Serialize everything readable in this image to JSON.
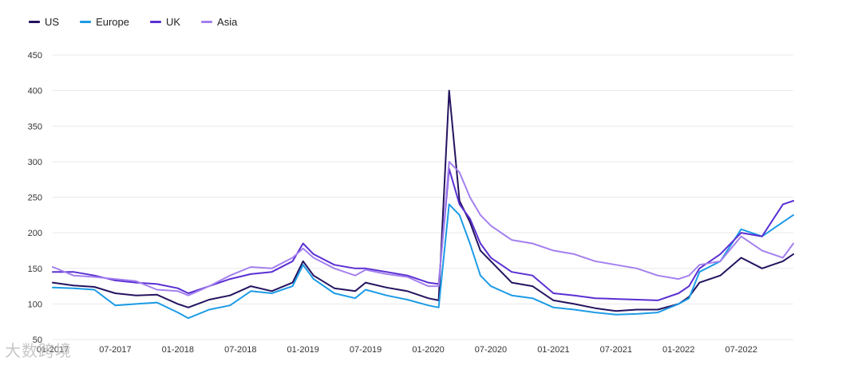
{
  "chart_data": {
    "type": "line",
    "title": "",
    "xlabel": "",
    "ylabel": "",
    "ylim": [
      50,
      450
    ],
    "yticks": [
      50,
      100,
      150,
      200,
      250,
      300,
      350,
      400,
      450
    ],
    "xlim": [
      "2017-01",
      "2022-12"
    ],
    "xticks": [
      "01-2017",
      "07-2017",
      "01-2018",
      "07-2018",
      "01-2019",
      "07-2019",
      "01-2020",
      "07-2020",
      "01-2021",
      "07-2021",
      "01-2022",
      "07-2022"
    ],
    "grid": "horizontal",
    "legend_position": "top-left",
    "series": [
      {
        "name": "US",
        "color": "#24135f",
        "points": [
          [
            "2017-01",
            130
          ],
          [
            "2017-03",
            126
          ],
          [
            "2017-05",
            124
          ],
          [
            "2017-07",
            115
          ],
          [
            "2017-09",
            112
          ],
          [
            "2017-11",
            113
          ],
          [
            "2018-01",
            100
          ],
          [
            "2018-02",
            95
          ],
          [
            "2018-04",
            106
          ],
          [
            "2018-06",
            112
          ],
          [
            "2018-08",
            125
          ],
          [
            "2018-10",
            118
          ],
          [
            "2018-12",
            130
          ],
          [
            "2019-01",
            160
          ],
          [
            "2019-02",
            140
          ],
          [
            "2019-04",
            122
          ],
          [
            "2019-06",
            118
          ],
          [
            "2019-07",
            130
          ],
          [
            "2019-09",
            123
          ],
          [
            "2019-11",
            118
          ],
          [
            "2020-01",
            108
          ],
          [
            "2020-02",
            105
          ],
          [
            "2020-03",
            400
          ],
          [
            "2020-04",
            245
          ],
          [
            "2020-05",
            215
          ],
          [
            "2020-06",
            175
          ],
          [
            "2020-07",
            160
          ],
          [
            "2020-09",
            130
          ],
          [
            "2020-11",
            125
          ],
          [
            "2021-01",
            105
          ],
          [
            "2021-03",
            100
          ],
          [
            "2021-05",
            94
          ],
          [
            "2021-07",
            90
          ],
          [
            "2021-09",
            92
          ],
          [
            "2021-11",
            92
          ],
          [
            "2022-01",
            100
          ],
          [
            "2022-02",
            110
          ],
          [
            "2022-03",
            130
          ],
          [
            "2022-05",
            140
          ],
          [
            "2022-07",
            165
          ],
          [
            "2022-09",
            150
          ],
          [
            "2022-11",
            160
          ],
          [
            "2022-12",
            170
          ]
        ]
      },
      {
        "name": "Europe",
        "color": "#1c9be6",
        "points": [
          [
            "2017-01",
            123
          ],
          [
            "2017-03",
            122
          ],
          [
            "2017-05",
            120
          ],
          [
            "2017-07",
            98
          ],
          [
            "2017-09",
            100
          ],
          [
            "2017-11",
            102
          ],
          [
            "2018-01",
            88
          ],
          [
            "2018-02",
            80
          ],
          [
            "2018-04",
            92
          ],
          [
            "2018-06",
            98
          ],
          [
            "2018-08",
            118
          ],
          [
            "2018-10",
            115
          ],
          [
            "2018-12",
            125
          ],
          [
            "2019-01",
            155
          ],
          [
            "2019-02",
            135
          ],
          [
            "2019-04",
            115
          ],
          [
            "2019-06",
            108
          ],
          [
            "2019-07",
            120
          ],
          [
            "2019-09",
            112
          ],
          [
            "2019-11",
            106
          ],
          [
            "2020-01",
            98
          ],
          [
            "2020-02",
            95
          ],
          [
            "2020-03",
            240
          ],
          [
            "2020-04",
            225
          ],
          [
            "2020-05",
            185
          ],
          [
            "2020-06",
            140
          ],
          [
            "2020-07",
            125
          ],
          [
            "2020-09",
            112
          ],
          [
            "2020-11",
            108
          ],
          [
            "2021-01",
            95
          ],
          [
            "2021-03",
            92
          ],
          [
            "2021-05",
            88
          ],
          [
            "2021-07",
            85
          ],
          [
            "2021-09",
            86
          ],
          [
            "2021-11",
            88
          ],
          [
            "2022-01",
            100
          ],
          [
            "2022-02",
            108
          ],
          [
            "2022-03",
            145
          ],
          [
            "2022-05",
            160
          ],
          [
            "2022-07",
            205
          ],
          [
            "2022-09",
            195
          ],
          [
            "2022-11",
            215
          ],
          [
            "2022-12",
            225
          ]
        ]
      },
      {
        "name": "UK",
        "color": "#5a2fd2",
        "points": [
          [
            "2017-01",
            145
          ],
          [
            "2017-03",
            145
          ],
          [
            "2017-05",
            140
          ],
          [
            "2017-07",
            133
          ],
          [
            "2017-09",
            130
          ],
          [
            "2017-11",
            128
          ],
          [
            "2018-01",
            122
          ],
          [
            "2018-02",
            115
          ],
          [
            "2018-04",
            125
          ],
          [
            "2018-06",
            135
          ],
          [
            "2018-08",
            142
          ],
          [
            "2018-10",
            145
          ],
          [
            "2018-12",
            160
          ],
          [
            "2019-01",
            185
          ],
          [
            "2019-02",
            170
          ],
          [
            "2019-04",
            155
          ],
          [
            "2019-06",
            150
          ],
          [
            "2019-07",
            150
          ],
          [
            "2019-09",
            145
          ],
          [
            "2019-11",
            140
          ],
          [
            "2020-01",
            130
          ],
          [
            "2020-02",
            128
          ],
          [
            "2020-03",
            290
          ],
          [
            "2020-04",
            240
          ],
          [
            "2020-05",
            220
          ],
          [
            "2020-06",
            185
          ],
          [
            "2020-07",
            165
          ],
          [
            "2020-09",
            145
          ],
          [
            "2020-11",
            140
          ],
          [
            "2021-01",
            115
          ],
          [
            "2021-03",
            112
          ],
          [
            "2021-05",
            108
          ],
          [
            "2021-07",
            107
          ],
          [
            "2021-09",
            106
          ],
          [
            "2021-11",
            105
          ],
          [
            "2022-01",
            115
          ],
          [
            "2022-02",
            125
          ],
          [
            "2022-03",
            150
          ],
          [
            "2022-05",
            170
          ],
          [
            "2022-07",
            200
          ],
          [
            "2022-09",
            195
          ],
          [
            "2022-11",
            240
          ],
          [
            "2022-12",
            245
          ]
        ]
      },
      {
        "name": "Asia",
        "color": "#a480ee",
        "points": [
          [
            "2017-01",
            152
          ],
          [
            "2017-03",
            140
          ],
          [
            "2017-05",
            138
          ],
          [
            "2017-07",
            135
          ],
          [
            "2017-09",
            132
          ],
          [
            "2017-11",
            120
          ],
          [
            "2018-01",
            118
          ],
          [
            "2018-02",
            112
          ],
          [
            "2018-04",
            125
          ],
          [
            "2018-06",
            140
          ],
          [
            "2018-08",
            152
          ],
          [
            "2018-10",
            150
          ],
          [
            "2018-12",
            165
          ],
          [
            "2019-01",
            178
          ],
          [
            "2019-02",
            165
          ],
          [
            "2019-04",
            150
          ],
          [
            "2019-06",
            140
          ],
          [
            "2019-07",
            148
          ],
          [
            "2019-09",
            142
          ],
          [
            "2019-11",
            138
          ],
          [
            "2020-01",
            125
          ],
          [
            "2020-02",
            125
          ],
          [
            "2020-03",
            300
          ],
          [
            "2020-04",
            285
          ],
          [
            "2020-05",
            250
          ],
          [
            "2020-06",
            225
          ],
          [
            "2020-07",
            210
          ],
          [
            "2020-09",
            190
          ],
          [
            "2020-11",
            185
          ],
          [
            "2021-01",
            175
          ],
          [
            "2021-03",
            170
          ],
          [
            "2021-05",
            160
          ],
          [
            "2021-07",
            155
          ],
          [
            "2021-09",
            150
          ],
          [
            "2021-11",
            140
          ],
          [
            "2022-01",
            135
          ],
          [
            "2022-02",
            140
          ],
          [
            "2022-03",
            155
          ],
          [
            "2022-05",
            160
          ],
          [
            "2022-07",
            195
          ],
          [
            "2022-09",
            175
          ],
          [
            "2022-11",
            165
          ],
          [
            "2022-12",
            185
          ]
        ]
      }
    ]
  },
  "watermark": "大数跨境"
}
